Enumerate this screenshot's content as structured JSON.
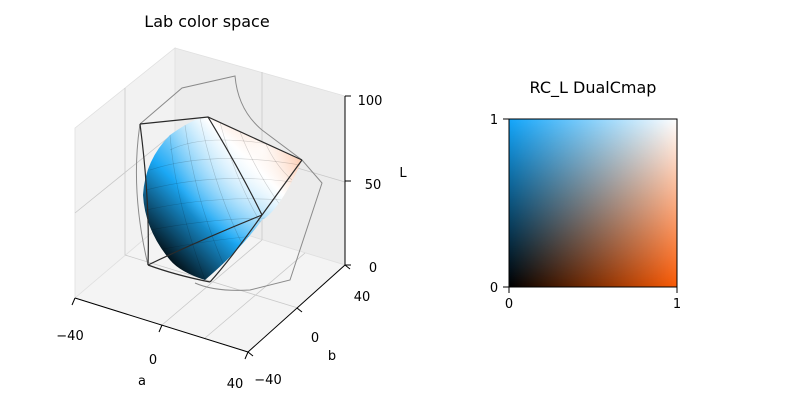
{
  "chart_data": [
    {
      "type": "surface3d",
      "title": "Lab color space",
      "xlabel": "a",
      "ylabel": "b",
      "zlabel": "L",
      "xlim": [
        -40,
        40
      ],
      "ylim": [
        -40,
        40
      ],
      "zlim": [
        0,
        100
      ],
      "x_ticks": [
        "−40",
        "0",
        "40"
      ],
      "y_ticks": [
        "−40",
        "0",
        "40"
      ],
      "z_ticks": [
        "0",
        "50",
        "100"
      ],
      "surface_colors": {
        "black_corner": "#000000",
        "blue_corner": "#1ba8f5",
        "white_corner": "#ffffff",
        "orange_corner": "#f75f0a"
      },
      "grid": true
    },
    {
      "type": "heatmap",
      "title": "RC_L DualCmap",
      "xlim": [
        0,
        1
      ],
      "ylim": [
        0,
        1
      ],
      "x_ticks": [
        "0",
        "1"
      ],
      "y_ticks": [
        "0",
        "1"
      ],
      "corner_colors": {
        "bottom_left": "#000000",
        "top_left": "#13a6fb",
        "top_right": "#ffffff",
        "bottom_right": "#fb5a05"
      }
    }
  ]
}
